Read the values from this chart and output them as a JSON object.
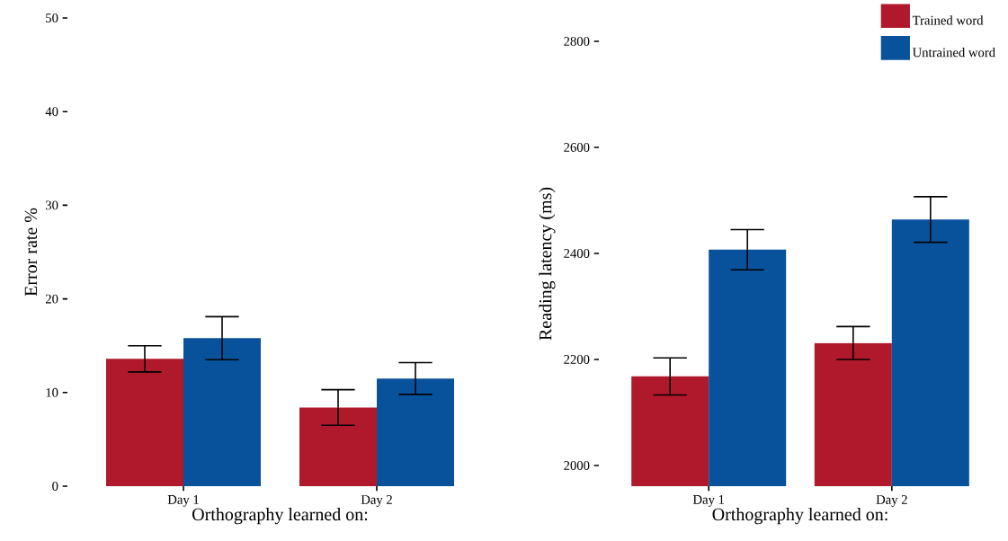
{
  "chart_data": [
    {
      "type": "bar",
      "ylabel": "Error rate %",
      "xlabel": "Orthography learned on:",
      "categories": [
        "Day 1",
        "Day 2"
      ],
      "ylim": [
        0,
        50
      ],
      "yticks": [
        0,
        10,
        20,
        30,
        40,
        50
      ],
      "series": [
        {
          "color": "#b0182c",
          "values": [
            13.6,
            8.4
          ],
          "errors": [
            1.4,
            1.9
          ]
        },
        {
          "color": "#08529c",
          "values": [
            15.8,
            11.5
          ],
          "errors": [
            2.3,
            1.7
          ]
        }
      ]
    },
    {
      "type": "bar",
      "ylabel": "Reading latency (ms)",
      "xlabel": "Orthography learned on:",
      "categories": [
        "Day 1",
        "Day 2"
      ],
      "ylim": [
        1961,
        2800
      ],
      "yticks": [
        2000,
        2200,
        2400,
        2600,
        2800
      ],
      "legend": "top right",
      "series": [
        {
          "name": "Trained word",
          "color": "#b0182c",
          "values": [
            2168,
            2231
          ],
          "errors": [
            35,
            31
          ]
        },
        {
          "name": "Untrained word",
          "color": "#08529c",
          "values": [
            2407,
            2464
          ],
          "errors": [
            38,
            43
          ]
        }
      ]
    }
  ]
}
